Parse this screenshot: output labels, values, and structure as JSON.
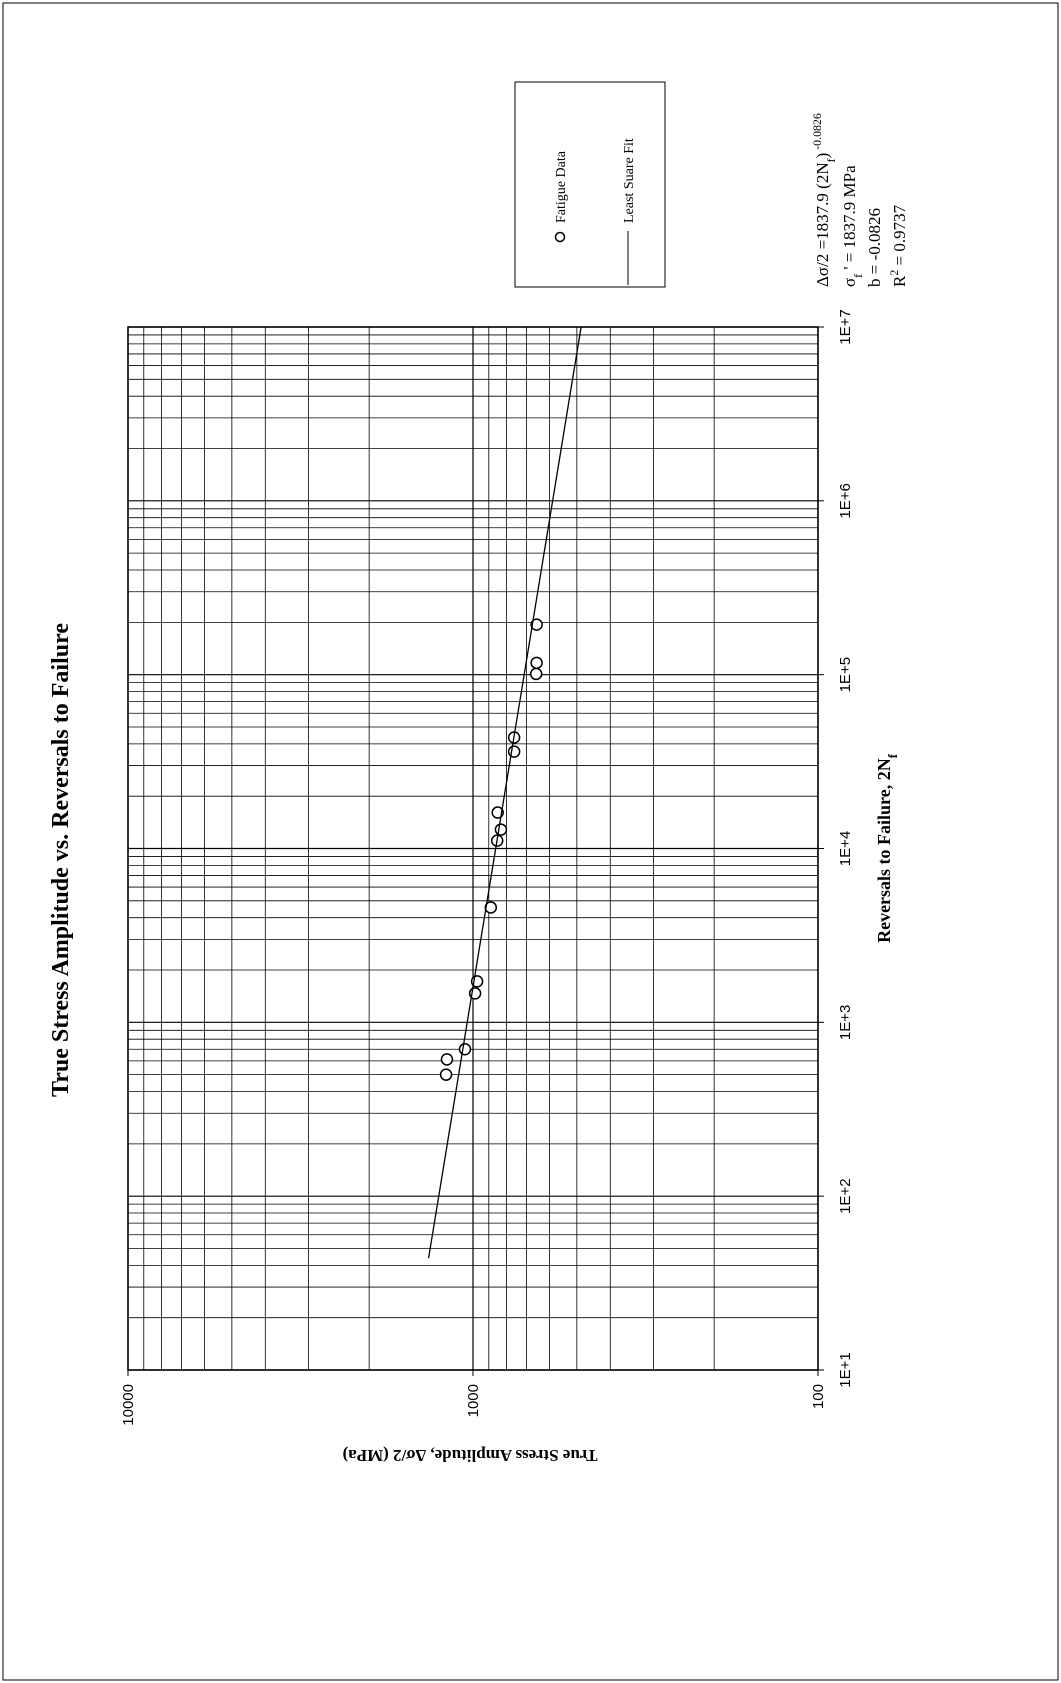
{
  "chart_data": {
    "type": "scatter",
    "title": "True Stress Amplitude vs. Reversals to Failure",
    "x_label": [
      {
        "text": "Reversals to Failure, 2N"
      },
      {
        "text": "f",
        "shift": "sub"
      }
    ],
    "y_label": "True Stress Amplitude, Δσ/2 (MPa)",
    "x_log": true,
    "y_log": true,
    "grid": true,
    "minor_grid": true,
    "xlim": [
      10,
      10000000
    ],
    "xticks": [
      {
        "value": 10,
        "label": "1E+1"
      },
      {
        "value": 100,
        "label": "1E+2"
      },
      {
        "value": 1000,
        "label": "1E+3"
      },
      {
        "value": 10000,
        "label": "1E+4"
      },
      {
        "value": 100000,
        "label": "1E+5"
      },
      {
        "value": 1000000,
        "label": "1E+6"
      },
      {
        "value": 10000000,
        "label": "1E+7"
      }
    ],
    "ylim": [
      100,
      10000
    ],
    "yticks": [
      100,
      1000,
      10000
    ],
    "series": [
      {
        "name": "Fatigue Data",
        "type": "scatter",
        "color": "#000000",
        "x": [
          500,
          612,
          700,
          1468,
          1720,
          4580,
          11100,
          12850,
          16100,
          36100,
          43500,
          101000,
          117000,
          194000
        ],
        "values": [
          1197,
          1190,
          1055,
          986,
          973,
          888,
          851,
          830,
          848,
          760,
          760,
          656,
          654,
          654
        ]
      },
      {
        "name": "Least Suare Fit",
        "type": "line",
        "color": "#000000",
        "x": [
          44,
          10000000
        ],
        "values": [
          1345,
          486
        ]
      }
    ],
    "annotation_lines": [
      [
        {
          "text": "Δσ/2 =1837.9 (2N"
        },
        {
          "text": "f",
          "shift": "sub"
        },
        {
          "text": ")"
        },
        {
          "text": " -0.0826",
          "shift": "sup"
        }
      ],
      [
        {
          "text": "σ"
        },
        {
          "text": "f",
          "shift": "sub"
        },
        {
          "text": " ' = 1837.9 MPa"
        }
      ],
      [
        {
          "text": "b = -0.0826"
        }
      ],
      [
        {
          "text": "R"
        },
        {
          "text": "2",
          "shift": "sup"
        },
        {
          "text": " = 0.9737"
        }
      ]
    ]
  }
}
